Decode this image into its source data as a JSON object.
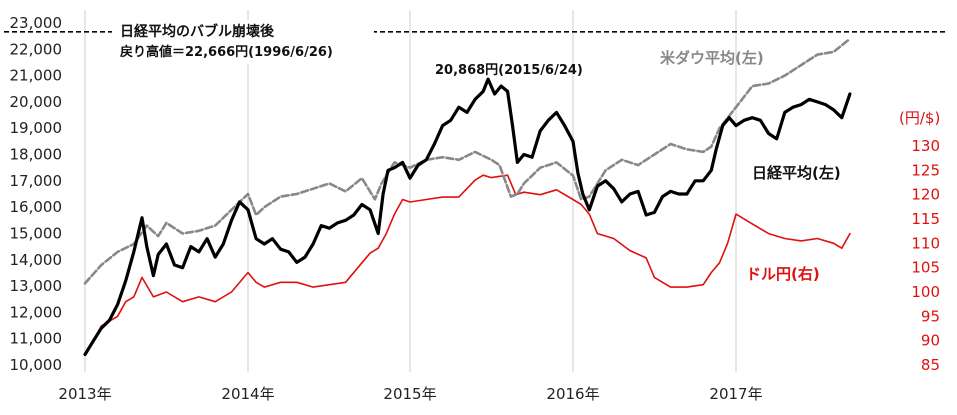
{
  "chart_data": {
    "type": "line",
    "title": "",
    "x_tick_labels": [
      "2013年",
      "2014年",
      "2015年",
      "2016年",
      "2017年"
    ],
    "y_left": {
      "ylim": [
        10000,
        23000
      ],
      "ticks": [
        "10,000",
        "11,000",
        "12,000",
        "13,000",
        "14,000",
        "15,000",
        "16,000",
        "17,000",
        "18,000",
        "19,000",
        "20,000",
        "21,000",
        "22,000",
        "23,000"
      ]
    },
    "y_right": {
      "unit_label": "(円/$)",
      "ylim": [
        85,
        130
      ],
      "ticks": [
        "85",
        "90",
        "95",
        "100",
        "105",
        "110",
        "115",
        "120",
        "125",
        "130"
      ]
    },
    "reference_line": {
      "value": 22666,
      "label_line1": "日経平均のバブル崩壊後",
      "label_line2": "戻り高値＝22,666円(1996/6/26)"
    },
    "peak_annotation": {
      "text": "20,868円(2015/6/24)",
      "x": 2015.48,
      "y": 20868
    },
    "series_labels": {
      "dow": "米ダウ平均(左)",
      "nikkei": "日経平均(左)",
      "usdjpy": "ドル円(右)"
    },
    "series": [
      {
        "name": "日経平均(左)",
        "axis": "left",
        "color": "#000000",
        "x": [
          2013.0,
          2013.05,
          2013.1,
          2013.15,
          2013.2,
          2013.25,
          2013.3,
          2013.35,
          2013.38,
          2013.42,
          2013.45,
          2013.5,
          2013.55,
          2013.6,
          2013.65,
          2013.7,
          2013.75,
          2013.8,
          2013.85,
          2013.9,
          2013.95,
          2014.0,
          2014.05,
          2014.1,
          2014.15,
          2014.2,
          2014.25,
          2014.3,
          2014.35,
          2014.4,
          2014.45,
          2014.5,
          2014.55,
          2014.6,
          2014.65,
          2014.7,
          2014.75,
          2014.8,
          2014.83,
          2014.86,
          2014.9,
          2014.95,
          2015.0,
          2015.05,
          2015.1,
          2015.15,
          2015.2,
          2015.25,
          2015.3,
          2015.35,
          2015.4,
          2015.45,
          2015.48,
          2015.52,
          2015.56,
          2015.6,
          2015.63,
          2015.66,
          2015.7,
          2015.75,
          2015.8,
          2015.85,
          2015.9,
          2015.95,
          2016.0,
          2016.03,
          2016.06,
          2016.1,
          2016.15,
          2016.2,
          2016.25,
          2016.3,
          2016.35,
          2016.4,
          2016.45,
          2016.5,
          2016.55,
          2016.6,
          2016.65,
          2016.7,
          2016.75,
          2016.8,
          2016.85,
          2016.88,
          2016.92,
          2016.96,
          2017.0,
          2017.05,
          2017.1,
          2017.15,
          2017.2,
          2017.25,
          2017.3,
          2017.35,
          2017.4,
          2017.45,
          2017.5,
          2017.55,
          2017.6,
          2017.65,
          2017.7
        ],
        "y": [
          10400,
          10900,
          11400,
          11700,
          12300,
          13200,
          14300,
          15600,
          14500,
          13400,
          14200,
          14600,
          13800,
          13700,
          14500,
          14300,
          14800,
          14100,
          14600,
          15500,
          16200,
          15900,
          14800,
          14600,
          14800,
          14400,
          14300,
          13900,
          14100,
          14600,
          15300,
          15200,
          15400,
          15500,
          15700,
          16100,
          15900,
          15000,
          16500,
          17400,
          17500,
          17700,
          17100,
          17600,
          17800,
          18400,
          19100,
          19300,
          19800,
          19600,
          20100,
          20400,
          20868,
          20300,
          20600,
          20400,
          19100,
          17700,
          18000,
          17900,
          18900,
          19300,
          19600,
          19100,
          18500,
          17300,
          16500,
          15900,
          16800,
          17000,
          16700,
          16200,
          16500,
          16600,
          15700,
          15800,
          16400,
          16600,
          16500,
          16500,
          17000,
          17000,
          17400,
          18200,
          19100,
          19400,
          19100,
          19300,
          19400,
          19300,
          18800,
          18600,
          19600,
          19800,
          19900,
          20100,
          20000,
          19900,
          19700,
          19400,
          20300
        ]
      },
      {
        "name": "米ダウ平均(左)",
        "axis": "left",
        "color": "#888888",
        "x": [
          2013.0,
          2013.1,
          2013.2,
          2013.3,
          2013.38,
          2013.45,
          2013.5,
          2013.6,
          2013.7,
          2013.8,
          2013.9,
          2014.0,
          2014.05,
          2014.1,
          2014.2,
          2014.3,
          2014.4,
          2014.5,
          2014.6,
          2014.7,
          2014.78,
          2014.82,
          2014.9,
          2015.0,
          2015.1,
          2015.2,
          2015.3,
          2015.4,
          2015.5,
          2015.55,
          2015.62,
          2015.66,
          2015.7,
          2015.8,
          2015.9,
          2016.0,
          2016.05,
          2016.1,
          2016.2,
          2016.3,
          2016.4,
          2016.5,
          2016.6,
          2016.7,
          2016.8,
          2016.85,
          2016.9,
          2017.0,
          2017.1,
          2017.2,
          2017.3,
          2017.4,
          2017.5,
          2017.6,
          2017.7
        ],
        "y": [
          13100,
          13800,
          14300,
          14600,
          15300,
          14900,
          15400,
          15000,
          15100,
          15300,
          15900,
          16500,
          15700,
          16000,
          16400,
          16500,
          16700,
          16900,
          16600,
          17100,
          16300,
          16900,
          17700,
          17500,
          17800,
          17900,
          17800,
          18100,
          17800,
          17600,
          16400,
          16500,
          16900,
          17500,
          17700,
          17200,
          16300,
          16400,
          17400,
          17800,
          17600,
          18000,
          18400,
          18200,
          18100,
          18300,
          19000,
          19800,
          20600,
          20700,
          21000,
          21400,
          21800,
          21900,
          22400
        ]
      },
      {
        "name": "ドル円(右)",
        "axis": "right",
        "color": "#e01010",
        "x": [
          2013.0,
          2013.05,
          2013.1,
          2013.15,
          2013.2,
          2013.25,
          2013.3,
          2013.35,
          2013.42,
          2013.5,
          2013.6,
          2013.7,
          2013.8,
          2013.9,
          2014.0,
          2014.05,
          2014.1,
          2014.2,
          2014.3,
          2014.4,
          2014.5,
          2014.6,
          2014.7,
          2014.75,
          2014.8,
          2014.85,
          2014.9,
          2014.95,
          2015.0,
          2015.1,
          2015.2,
          2015.3,
          2015.4,
          2015.45,
          2015.5,
          2015.6,
          2015.65,
          2015.7,
          2015.8,
          2015.9,
          2016.0,
          2016.05,
          2016.1,
          2016.15,
          2016.25,
          2016.35,
          2016.45,
          2016.5,
          2016.55,
          2016.6,
          2016.7,
          2016.8,
          2016.85,
          2016.9,
          2016.95,
          2017.0,
          2017.1,
          2017.2,
          2017.3,
          2017.4,
          2017.5,
          2017.6,
          2017.65,
          2017.7
        ],
        "y": [
          87,
          90,
          93,
          94,
          95,
          98,
          99,
          103,
          99,
          100,
          98,
          99,
          98,
          100,
          104,
          102,
          101,
          102,
          102,
          101,
          101.5,
          102,
          106,
          108,
          109,
          112,
          116,
          119,
          118.5,
          119,
          119.5,
          119.5,
          123,
          124,
          123.5,
          124,
          120,
          120.5,
          120,
          121,
          119,
          118,
          116,
          112,
          111,
          108.5,
          107,
          103,
          102,
          101,
          101,
          101.5,
          104,
          106,
          110,
          116,
          114,
          112,
          111,
          110.5,
          111,
          110,
          109,
          112
        ]
      }
    ]
  }
}
